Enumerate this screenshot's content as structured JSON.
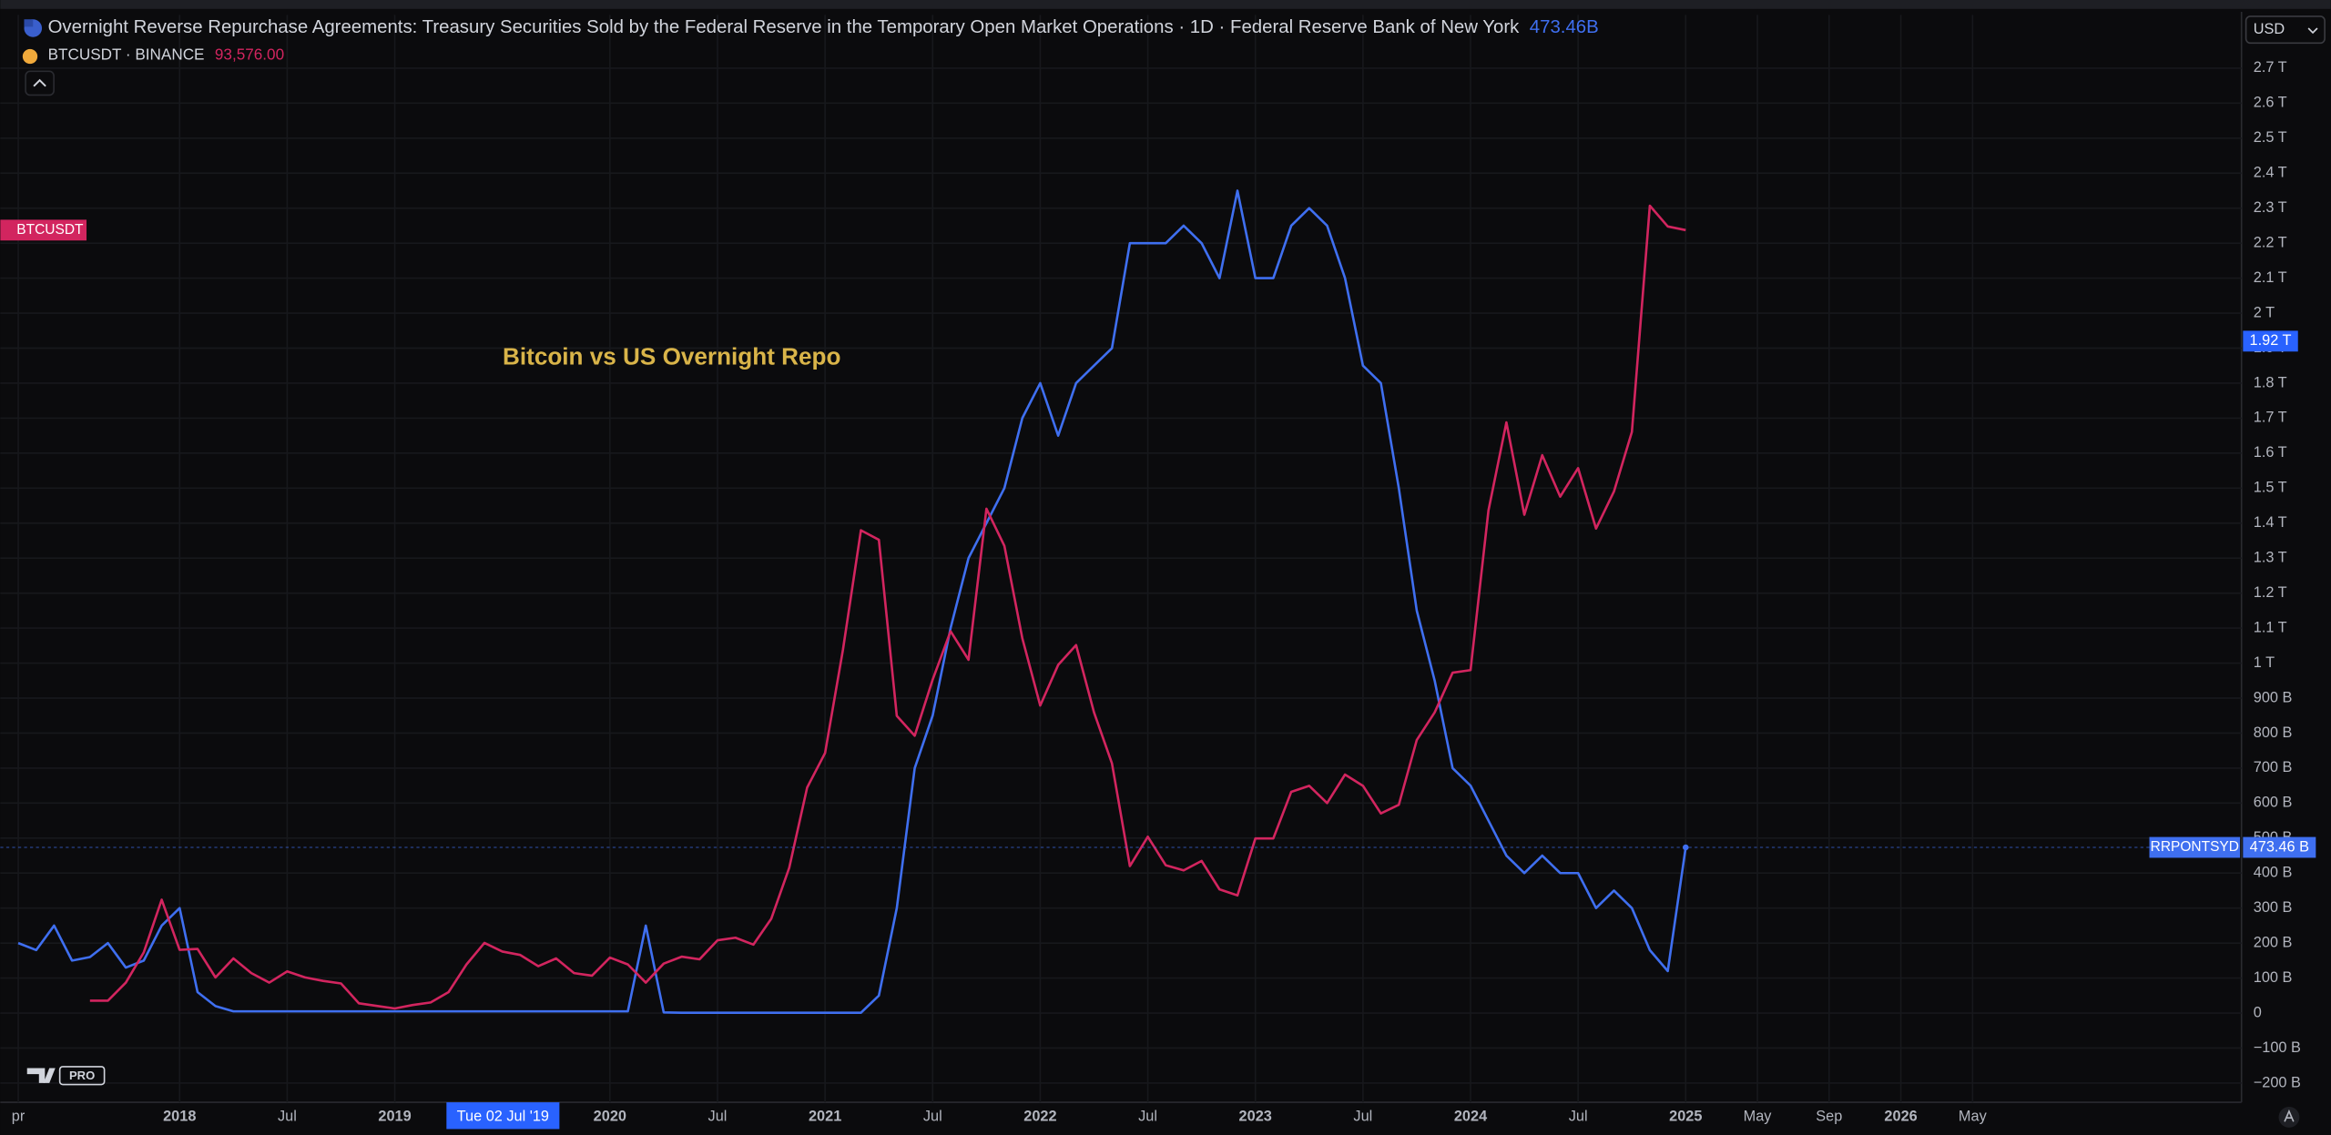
{
  "chart_data": {
    "type": "line",
    "annotation": "Bitcoin vs US Overnight Repo",
    "currency": "USD",
    "x": [
      "2017-04",
      "2017-05",
      "2017-06",
      "2017-07",
      "2017-08",
      "2017-09",
      "2017-10",
      "2017-11",
      "2017-12",
      "2018-01",
      "2018-02",
      "2018-03",
      "2018-04",
      "2018-05",
      "2018-06",
      "2018-07",
      "2018-08",
      "2018-09",
      "2018-10",
      "2018-11",
      "2018-12",
      "2019-01",
      "2019-02",
      "2019-03",
      "2019-04",
      "2019-05",
      "2019-06",
      "2019-07",
      "2019-08",
      "2019-09",
      "2019-10",
      "2019-11",
      "2019-12",
      "2020-01",
      "2020-02",
      "2020-03",
      "2020-04",
      "2020-05",
      "2020-06",
      "2020-07",
      "2020-08",
      "2020-09",
      "2020-10",
      "2020-11",
      "2020-12",
      "2021-01",
      "2021-02",
      "2021-03",
      "2021-04",
      "2021-05",
      "2021-06",
      "2021-07",
      "2021-08",
      "2021-09",
      "2021-10",
      "2021-11",
      "2021-12",
      "2022-01",
      "2022-02",
      "2022-03",
      "2022-04",
      "2022-05",
      "2022-06",
      "2022-07",
      "2022-08",
      "2022-09",
      "2022-10",
      "2022-11",
      "2022-12",
      "2023-01",
      "2023-02",
      "2023-03",
      "2023-04",
      "2023-05",
      "2023-06",
      "2023-07",
      "2023-08",
      "2023-09",
      "2023-10",
      "2023-11",
      "2023-12",
      "2024-01",
      "2024-02",
      "2024-03",
      "2024-04",
      "2024-05",
      "2024-06",
      "2024-07",
      "2024-08",
      "2024-09",
      "2024-10",
      "2024-11",
      "2024-12",
      "2025-01"
    ],
    "series": [
      {
        "name": "Overnight Reverse Repurchase Agreements: Treasury Securities Sold by the Federal Reserve in the Temporary Open Market Operations · 1D · Federal Reserve Bank of New York",
        "symbol": "RRPONTSYD",
        "last_value_label": "473.46B",
        "axis_tag_label": "473.46 B",
        "color": "#3f6ff0",
        "axis": "y",
        "values": [
          200,
          180,
          250,
          150,
          160,
          200,
          130,
          150,
          250,
          300,
          60,
          20,
          5,
          5,
          5,
          5,
          5,
          5,
          5,
          5,
          5,
          5,
          5,
          5,
          5,
          5,
          5,
          5,
          5,
          5,
          5,
          5,
          5,
          5,
          5,
          250,
          2,
          1,
          1,
          1,
          1,
          1,
          1,
          1,
          1,
          1,
          1,
          1,
          50,
          300,
          700,
          850,
          1100,
          1300,
          1400,
          1500,
          1700,
          1800,
          1650,
          1800,
          1850,
          1900,
          2200,
          2200,
          2200,
          2250,
          2200,
          2100,
          2350,
          2100,
          2100,
          2250,
          2300,
          2250,
          2100,
          1850,
          1800,
          1500,
          1150,
          950,
          700,
          650,
          550,
          450,
          400,
          450,
          400,
          400,
          300,
          350,
          300,
          180,
          120,
          473.46
        ]
      },
      {
        "name": "BTCUSDT · BINANCE",
        "symbol": "BTCUSDT",
        "last_value_label": "93,576.00",
        "color": "#d2255f",
        "axis": "y2",
        "values": [
          null,
          null,
          null,
          null,
          4300,
          4300,
          6400,
          9900,
          16000,
          10200,
          10300,
          7000,
          9200,
          7500,
          6400,
          7700,
          7000,
          6600,
          6300,
          4000,
          3700,
          3400,
          3800,
          4100,
          5300,
          8500,
          11000,
          10000,
          9600,
          8300,
          9200,
          7500,
          7200,
          9300,
          8500,
          6400,
          8600,
          9400,
          9100,
          11300,
          11600,
          10800,
          13800,
          19700,
          29000,
          33000,
          45000,
          58800,
          57700,
          37300,
          35000,
          41500,
          47100,
          43800,
          61300,
          57000,
          46300,
          38500,
          43200,
          45500,
          37700,
          31800,
          19900,
          23300,
          20000,
          19400,
          20500,
          17200,
          16500,
          23100,
          23100,
          28500,
          29200,
          27200,
          30500,
          29200,
          26000,
          27000,
          34500,
          37700,
          42300,
          42600,
          61100,
          71300,
          60600,
          67500,
          62700,
          66000,
          59000,
          63300,
          70200,
          96400,
          94000,
          93576
        ]
      }
    ],
    "xlim": [
      "2017-03",
      "2027-08"
    ],
    "xticks": [
      {
        "value": "2017-04",
        "label": "pr"
      },
      {
        "value": "2018-01",
        "label": "2018"
      },
      {
        "value": "2018-07",
        "label": "Jul"
      },
      {
        "value": "2019-01",
        "label": "2019"
      },
      {
        "value": "2020-01",
        "label": "2020"
      },
      {
        "value": "2020-07",
        "label": "Jul"
      },
      {
        "value": "2021-01",
        "label": "2021"
      },
      {
        "value": "2021-07",
        "label": "Jul"
      },
      {
        "value": "2022-01",
        "label": "2022"
      },
      {
        "value": "2022-07",
        "label": "Jul"
      },
      {
        "value": "2023-01",
        "label": "2023"
      },
      {
        "value": "2023-07",
        "label": "Jul"
      },
      {
        "value": "2024-01",
        "label": "2024"
      },
      {
        "value": "2024-07",
        "label": "Jul"
      },
      {
        "value": "2025-01",
        "label": "2025"
      },
      {
        "value": "2025-05",
        "label": "May"
      },
      {
        "value": "2025-09",
        "label": "Sep"
      },
      {
        "value": "2026-01",
        "label": "2026"
      },
      {
        "value": "2026-05",
        "label": "May"
      }
    ],
    "ylim": [
      -255,
      2725
    ],
    "yticks": [
      {
        "value": 2700,
        "label": "2.7 T"
      },
      {
        "value": 2600,
        "label": "2.6 T"
      },
      {
        "value": 2500,
        "label": "2.5 T"
      },
      {
        "value": 2400,
        "label": "2.4 T"
      },
      {
        "value": 2300,
        "label": "2.3 T"
      },
      {
        "value": 2200,
        "label": "2.2 T"
      },
      {
        "value": 2100,
        "label": "2.1 T"
      },
      {
        "value": 2000,
        "label": "2 T"
      },
      {
        "value": 1900,
        "label": "1.9 T"
      },
      {
        "value": 1800,
        "label": "1.8 T"
      },
      {
        "value": 1700,
        "label": "1.7 T"
      },
      {
        "value": 1600,
        "label": "1.6 T"
      },
      {
        "value": 1500,
        "label": "1.5 T"
      },
      {
        "value": 1400,
        "label": "1.4 T"
      },
      {
        "value": 1300,
        "label": "1.3 T"
      },
      {
        "value": 1200,
        "label": "1.2 T"
      },
      {
        "value": 1100,
        "label": "1.1 T"
      },
      {
        "value": 1000,
        "label": "1 T"
      },
      {
        "value": 900,
        "label": "900 B"
      },
      {
        "value": 800,
        "label": "800 B"
      },
      {
        "value": 700,
        "label": "700 B"
      },
      {
        "value": 600,
        "label": "600 B"
      },
      {
        "value": 500,
        "label": "500 B"
      },
      {
        "value": 400,
        "label": "400 B"
      },
      {
        "value": 300,
        "label": "300 B"
      },
      {
        "value": 200,
        "label": "200 B"
      },
      {
        "value": 100,
        "label": "100 B"
      },
      0,
      {
        "value": -100,
        "label": "−100 B"
      },
      {
        "value": -200,
        "label": "−200 B"
      }
    ],
    "y2lim": [
      -7470,
      113350
    ],
    "grid": true,
    "crosshair": {
      "x": "2019-07-02",
      "x_label": "Tue 02 Jul '19",
      "y": 1920,
      "y_label": "1.92 T"
    },
    "branding": "PRO"
  }
}
